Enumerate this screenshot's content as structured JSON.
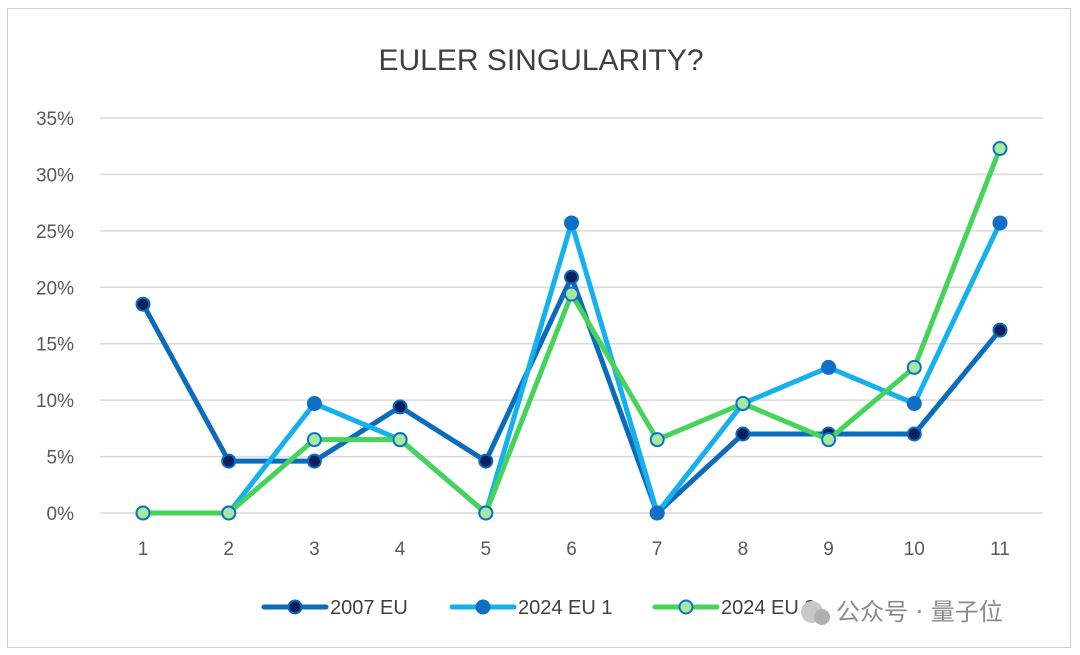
{
  "chart_data": {
    "type": "line",
    "title": "EULER SINGULARITY?",
    "xlabel": "",
    "ylabel": "",
    "categories": [
      "1",
      "2",
      "3",
      "4",
      "5",
      "6",
      "7",
      "8",
      "9",
      "10",
      "11"
    ],
    "ylim": [
      0,
      35
    ],
    "yticks": [
      "0%",
      "5%",
      "10%",
      "15%",
      "20%",
      "25%",
      "30%",
      "35%"
    ],
    "grid": true,
    "legend": "bottom",
    "series": [
      {
        "name": "2007 EU",
        "values": [
          18.5,
          4.6,
          4.6,
          9.4,
          4.6,
          20.9,
          0,
          7.0,
          7.0,
          7.0,
          16.2
        ],
        "line_color": "#0b6bbd",
        "marker_fill": "#0a1f5c",
        "marker_stroke": "#0b6bbd"
      },
      {
        "name": "2024 EU 1",
        "values": [
          0,
          0,
          9.7,
          6.5,
          0,
          25.7,
          0,
          9.7,
          12.9,
          9.7,
          25.7
        ],
        "line_color": "#14b1ee",
        "marker_fill": "#0f6fc6",
        "marker_stroke": "#0f6fc6"
      },
      {
        "name": "2024 EU 2",
        "values": [
          0,
          0,
          6.5,
          6.5,
          0,
          19.4,
          6.5,
          9.7,
          6.5,
          12.9,
          32.3
        ],
        "line_color": "#45d35a",
        "marker_fill": "#a6e8a0",
        "marker_stroke": "#0f6fc6"
      }
    ]
  },
  "watermark": "公众号 · 量子位"
}
